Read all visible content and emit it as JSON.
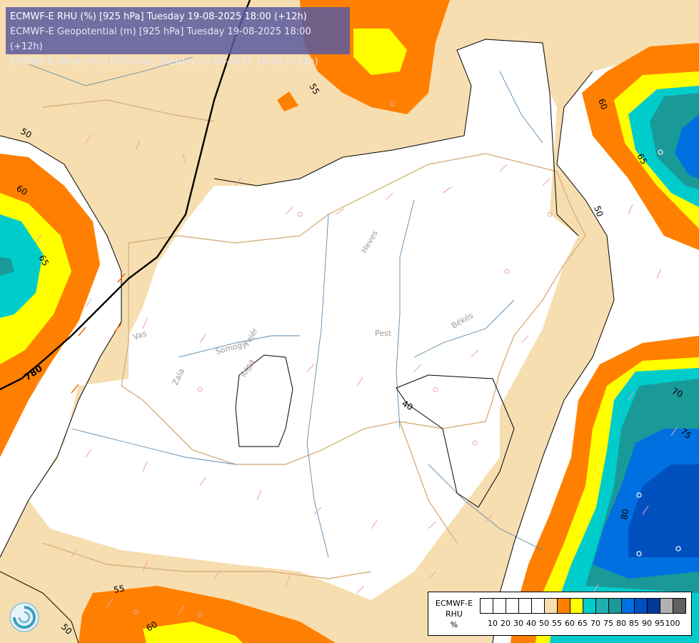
{
  "title_lines": [
    "ECMWF-E RHU (%) [925 hPa] Tuesday 19-08-2025 18:00 (+12h)",
    "ECMWF-E Geopotential (m) [925 hPa] Tuesday 19-08-2025 18:00 (+12h)",
    "ECMWF-E Wind (m/s) [925 hPa] Tuesday 19-08-2025 18:00 (+12h)"
  ],
  "legend": {
    "model": "ECMWF-E",
    "variable": "RHU",
    "unit": "%",
    "colors": [
      "#ffffff",
      "#ffffff",
      "#ffffff",
      "#ffffff",
      "#ffffff",
      "#f7deb0",
      "#ff8000",
      "#ffff00",
      "#00cccc",
      "#20b0b0",
      "#1a9999",
      "#0070e0",
      "#0050c0",
      "#003a99",
      "#b0b0b0",
      "#606060"
    ],
    "tick_values": [
      "10",
      "20",
      "30",
      "40",
      "50",
      "55",
      "60",
      "65",
      "70",
      "75",
      "80",
      "85",
      "90",
      "95",
      "100"
    ]
  },
  "contour_labels": {
    "rhu": [
      "50",
      "55",
      "60",
      "65",
      "50",
      "60",
      "65",
      "70",
      "75",
      "80",
      "55",
      "60",
      "50",
      "40"
    ],
    "geopotential": [
      "780"
    ]
  },
  "region_labels": [
    "Heves",
    "Pest",
    "Békés",
    "Fejér",
    "Somogy",
    "Tolna",
    "Zala",
    "Vas"
  ]
}
